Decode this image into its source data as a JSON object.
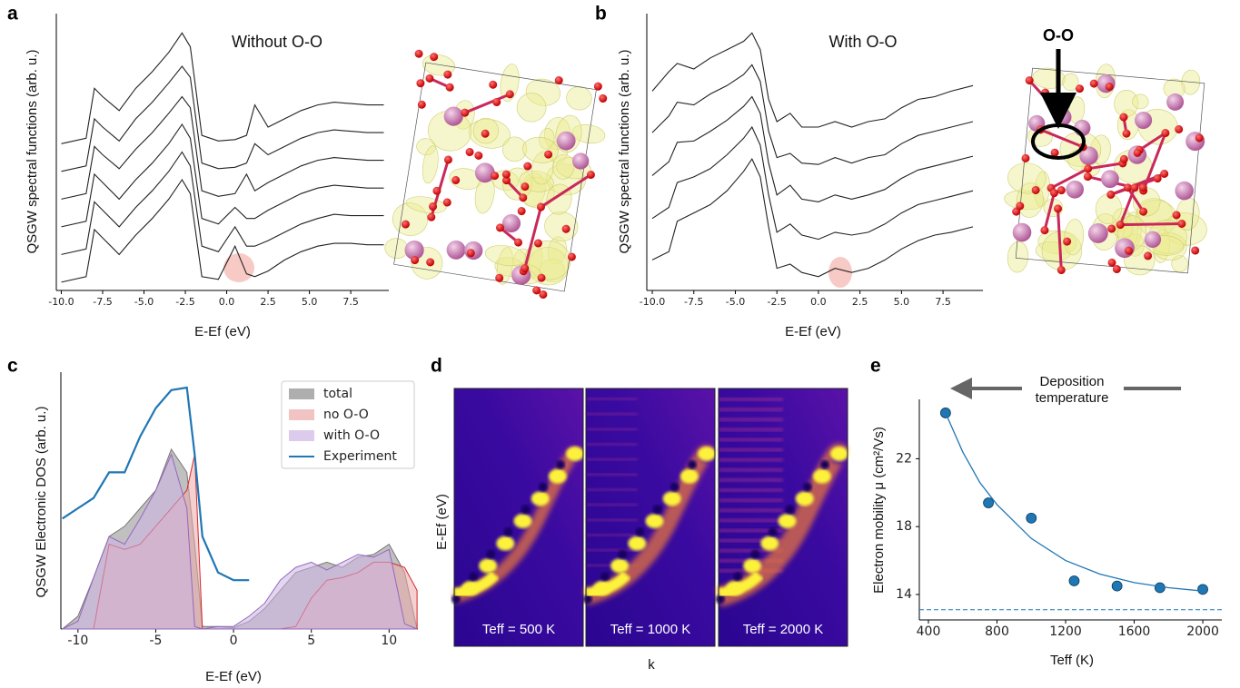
{
  "chart_data": [
    {
      "type": "line",
      "panel": "a",
      "title": "Without O-O",
      "xlabel": "E-Ef (eV)",
      "ylabel": "QSGW spectral functions (arb. u.)",
      "color": "#222222",
      "xlim": [
        -10.3,
        9.8
      ],
      "ylim": [
        0,
        10
      ],
      "xticks": [
        {
          "value": -10,
          "label": "-10.0"
        },
        -7.5,
        {
          "value": -5,
          "label": "-5.0"
        },
        -2.5,
        {
          "value": 0,
          "label": "0.0"
        },
        2.5,
        {
          "value": 5,
          "label": "5.0"
        },
        7.5
      ],
      "x": [
        -10,
        -8.5,
        -8,
        -7.5,
        -6.5,
        -5.5,
        -4.5,
        -3.5,
        -2.7,
        -2.2,
        -1.5,
        -0.5,
        0.5,
        1.2,
        1.7,
        2.5,
        3.5,
        4.5,
        5.5,
        6.5,
        7.5,
        8.5,
        9.5
      ],
      "series": [
        {
          "values": [
            5.3,
            5.5,
            7.3,
            7.0,
            6.5,
            7.3,
            7.9,
            8.6,
            9.3,
            8.8,
            5.6,
            5.4,
            5.45,
            5.6,
            6.7,
            5.9,
            6.2,
            6.5,
            6.7,
            6.8,
            6.75,
            6.7,
            6.7
          ]
        },
        {
          "values": [
            4.3,
            4.5,
            6.2,
            5.9,
            5.4,
            6.2,
            6.8,
            7.5,
            8.1,
            7.7,
            4.6,
            4.4,
            4.45,
            4.6,
            5.3,
            4.9,
            5.2,
            5.5,
            5.7,
            5.8,
            5.75,
            5.7,
            5.7
          ]
        },
        {
          "values": [
            3.3,
            3.5,
            5.2,
            4.9,
            4.4,
            5.1,
            5.7,
            6.4,
            7.0,
            6.6,
            3.6,
            3.4,
            3.5,
            4.2,
            3.6,
            3.9,
            4.2,
            4.5,
            4.7,
            4.8,
            4.75,
            4.7,
            4.7
          ]
        },
        {
          "values": [
            2.3,
            2.5,
            4.2,
            3.9,
            3.3,
            4.0,
            4.6,
            5.3,
            6.0,
            5.5,
            2.6,
            2.4,
            3.0,
            2.6,
            2.6,
            2.9,
            3.2,
            3.5,
            3.7,
            3.8,
            3.75,
            3.7,
            3.7
          ]
        },
        {
          "values": [
            1.3,
            1.5,
            3.2,
            2.9,
            2.3,
            3.0,
            3.6,
            4.3,
            5.0,
            4.5,
            1.6,
            1.4,
            2.3,
            1.6,
            1.6,
            1.8,
            2.1,
            2.4,
            2.6,
            2.75,
            2.7,
            2.7,
            2.7
          ]
        },
        {
          "values": [
            0.3,
            0.5,
            2.2,
            1.9,
            1.3,
            2.0,
            2.6,
            3.3,
            4.0,
            3.5,
            0.5,
            0.4,
            1.6,
            0.6,
            0.5,
            0.7,
            1.1,
            1.4,
            1.6,
            1.7,
            1.7,
            1.65,
            1.65
          ]
        }
      ]
    },
    {
      "type": "line",
      "panel": "b",
      "title": "With O-O",
      "highlight_label": "O-O",
      "xlabel": "E-Ef (eV)",
      "ylabel": "QSGW spectral functions (arb. u.)",
      "color": "#222222",
      "xlim": [
        -10.33,
        9.9
      ],
      "ylim": [
        0,
        10
      ],
      "xticks": [
        {
          "value": -10,
          "label": "-10.0"
        },
        -7.5,
        {
          "value": -5,
          "label": "-5.0"
        },
        -2.5,
        {
          "value": 0,
          "label": "0.0"
        },
        2.5,
        {
          "value": 5,
          "label": "5.0"
        },
        7.5
      ],
      "x": [
        -10,
        -9,
        -8.5,
        -7.5,
        -6.5,
        -5.5,
        -4.5,
        -4,
        -3.5,
        -3,
        -2.5,
        -1.7,
        -1,
        0,
        1,
        2,
        3,
        4,
        5,
        6,
        7,
        8,
        9.3
      ],
      "series": [
        {
          "values": [
            7.2,
            7.9,
            8.2,
            8.0,
            8.4,
            8.7,
            9.0,
            9.3,
            8.7,
            6.9,
            6.1,
            6.4,
            5.9,
            5.9,
            6.1,
            5.9,
            6.1,
            6.2,
            6.6,
            6.9,
            7.0,
            7.2,
            7.4
          ]
        },
        {
          "values": [
            5.7,
            6.3,
            6.8,
            6.7,
            7.1,
            7.4,
            7.8,
            8.15,
            7.55,
            5.75,
            4.8,
            4.95,
            4.6,
            4.55,
            4.8,
            4.6,
            4.8,
            4.9,
            5.3,
            5.6,
            5.75,
            5.9,
            6.1
          ]
        },
        {
          "values": [
            4.15,
            4.65,
            5.35,
            5.4,
            5.75,
            6.15,
            6.65,
            7.0,
            6.4,
            4.6,
            3.45,
            3.8,
            3.3,
            3.2,
            3.45,
            3.3,
            3.45,
            3.65,
            4.05,
            4.35,
            4.5,
            4.65,
            4.85
          ]
        },
        {
          "values": [
            2.6,
            3.0,
            3.9,
            4.1,
            4.4,
            4.9,
            5.5,
            5.9,
            5.25,
            3.45,
            2.1,
            2.4,
            2.0,
            1.85,
            2.1,
            2.0,
            2.1,
            2.4,
            2.8,
            3.1,
            3.25,
            3.4,
            3.6
          ]
        },
        {
          "values": [
            1.1,
            1.4,
            2.5,
            2.8,
            3.1,
            3.6,
            4.3,
            4.75,
            4.1,
            2.3,
            0.8,
            0.95,
            0.65,
            0.5,
            0.8,
            0.65,
            0.8,
            1.1,
            1.5,
            1.8,
            2.0,
            2.1,
            2.3
          ]
        }
      ]
    },
    {
      "type": "area",
      "panel": "c",
      "xlabel": "E-Ef (eV)",
      "ylabel": "QSGW Electronic DOS (arb. u.)",
      "legend": "upper right",
      "xlim": [
        -11.1,
        11.85
      ],
      "ylim": [
        0,
        10
      ],
      "xticks": [
        -10,
        -5,
        0,
        5,
        10
      ],
      "x": [
        -11,
        -10,
        -9,
        -8,
        -7,
        -6,
        -5,
        -4,
        -3,
        -2.5,
        -2,
        -1,
        0,
        1,
        2,
        3,
        4,
        5,
        6,
        7,
        8,
        9,
        10,
        11,
        11.8
      ],
      "series": [
        {
          "name": "total",
          "style": "area",
          "color": "#8c8c8c",
          "line_color": "#777777",
          "values": [
            0,
            0.5,
            2.0,
            3.6,
            4.0,
            4.7,
            5.4,
            7.0,
            6.1,
            3.3,
            0.1,
            0.1,
            0.05,
            0.3,
            0.8,
            1.5,
            2.2,
            2.4,
            2.6,
            2.4,
            2.8,
            2.9,
            3.3,
            2.2,
            0
          ]
        },
        {
          "name": "no O-O",
          "style": "area",
          "color": "#eba9a9",
          "line_color": "#d62728",
          "values": [
            0,
            0,
            0,
            3.3,
            3.1,
            3.3,
            4.0,
            4.7,
            5.4,
            6.8,
            0,
            0,
            0,
            0,
            0,
            0,
            0.1,
            1.2,
            1.9,
            2.0,
            2.2,
            2.6,
            2.6,
            2.4,
            1.5
          ]
        },
        {
          "name": "with O-O",
          "style": "area",
          "color": "#cdb5e6",
          "line_color": "#9467bd",
          "values": [
            0,
            0.3,
            2.0,
            3.6,
            3.3,
            4.3,
            5.4,
            6.8,
            4.7,
            0.1,
            0,
            0.1,
            0.1,
            0.5,
            1.0,
            1.9,
            2.4,
            2.6,
            2.3,
            2.6,
            2.9,
            2.8,
            3.1,
            0.2,
            0
          ]
        },
        {
          "name": "Experiment",
          "style": "line",
          "color": "#1f77b4",
          "values": [
            4.3,
            4.7,
            5.1,
            6.1,
            6.1,
            7.5,
            8.6,
            9.3,
            9.4,
            6.8,
            3.6,
            2.2,
            1.9,
            1.9,
            null,
            null,
            null,
            null,
            null,
            null,
            null,
            null,
            null,
            null,
            null
          ]
        }
      ]
    },
    {
      "type": "heatmap",
      "panel": "d",
      "xlabel": "k",
      "ylabel": "E-Ef (eV)",
      "panels": [
        "Teff = 500 K",
        "Teff = 1000 K",
        "Teff = 2000 K"
      ]
    },
    {
      "type": "scatter",
      "panel": "e",
      "xlabel": "Teff (K)",
      "ylabel": "Electron mobility μ (cm²/Vs)",
      "annotation": [
        "Deposition",
        "temperature"
      ],
      "xlim": [
        347,
        2111
      ],
      "ylim": [
        12.5,
        25.5
      ],
      "xticks": [
        400,
        800,
        1200,
        1600,
        2000
      ],
      "yticks": [
        14,
        18,
        22
      ],
      "series": [
        {
          "style": "marker",
          "color": "#1f77b4",
          "x": [
            500,
            750,
            1000,
            1250,
            1500,
            1750,
            2000
          ],
          "values": [
            24.7,
            19.4,
            18.5,
            14.8,
            14.5,
            14.4,
            14.3
          ]
        },
        {
          "style": "line",
          "color": "#1f77b4",
          "x": [
            500,
            600,
            700,
            800,
            1000,
            1200,
            1400,
            1600,
            1800,
            2000
          ],
          "values": [
            24.7,
            22.4,
            20.6,
            19.3,
            17.3,
            16.0,
            15.2,
            14.7,
            14.4,
            14.2
          ]
        }
      ],
      "hline": {
        "value": 13.1,
        "color": "#1f77b4",
        "dashed": true
      }
    }
  ]
}
